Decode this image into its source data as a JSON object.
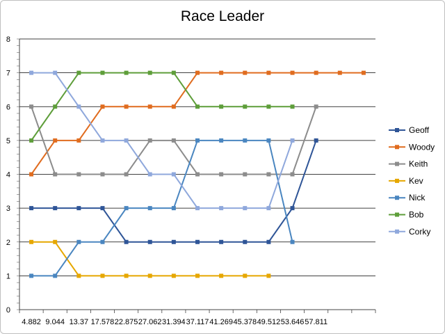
{
  "chart_data": {
    "type": "line",
    "title": "Race Leader",
    "categories": [
      "4.882",
      "9.044",
      "13.37",
      "17.578",
      "22.875",
      "27.062",
      "31.394",
      "37.117",
      "41.269",
      "45.378",
      "49.512",
      "53.646",
      "57.811",
      "",
      ""
    ],
    "ylim": [
      0,
      8
    ],
    "yticks": [
      0,
      1,
      2,
      3,
      4,
      5,
      6,
      7,
      8
    ],
    "grid": true,
    "legend": "right",
    "series": [
      {
        "name": "Geoff",
        "color": "#2f5597",
        "values": [
          3,
          3,
          3,
          3,
          2,
          2,
          2,
          2,
          2,
          2,
          2,
          3,
          5,
          null,
          null
        ]
      },
      {
        "name": "Woody",
        "color": "#e06c1f",
        "values": [
          4,
          5,
          5,
          6,
          6,
          6,
          6,
          7,
          7,
          7,
          7,
          7,
          7,
          7,
          7
        ]
      },
      {
        "name": "Keith",
        "color": "#8c8c8c",
        "values": [
          6,
          4,
          4,
          4,
          4,
          5,
          5,
          4,
          4,
          4,
          4,
          4,
          6,
          null,
          null
        ]
      },
      {
        "name": "Kev",
        "color": "#e6a700",
        "values": [
          2,
          2,
          1,
          1,
          1,
          1,
          1,
          1,
          1,
          1,
          1,
          null,
          null,
          null,
          null
        ]
      },
      {
        "name": "Nick",
        "color": "#4a86c0",
        "values": [
          1,
          1,
          2,
          2,
          3,
          3,
          3,
          5,
          5,
          5,
          5,
          2,
          null,
          null,
          null
        ]
      },
      {
        "name": "Bob",
        "color": "#5e9e3a",
        "values": [
          5,
          6,
          7,
          7,
          7,
          7,
          7,
          6,
          6,
          6,
          6,
          6,
          null,
          null,
          null
        ]
      },
      {
        "name": "Corky",
        "color": "#8fa8dc",
        "values": [
          7,
          7,
          6,
          5,
          5,
          4,
          4,
          3,
          3,
          3,
          3,
          5,
          null,
          null,
          null
        ]
      }
    ]
  }
}
